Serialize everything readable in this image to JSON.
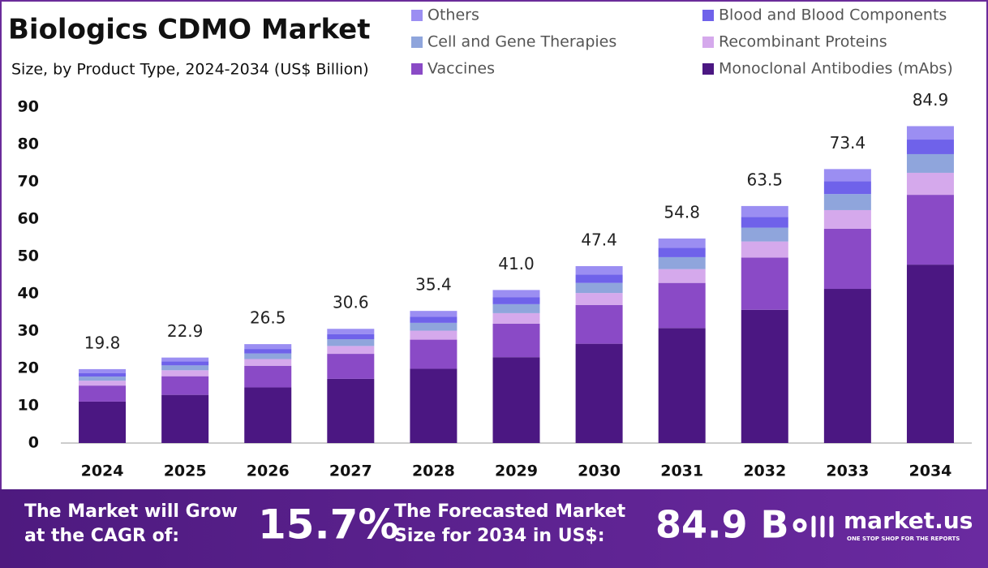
{
  "chart_data": {
    "type": "stacked_bar",
    "title": "Biologics CDMO Market",
    "subtitle": "Size, by Product Type, 2024-2034 (US$ Billion)",
    "categories": [
      "2024",
      "2025",
      "2026",
      "2027",
      "2028",
      "2029",
      "2030",
      "2031",
      "2032",
      "2033",
      "2034"
    ],
    "series": [
      {
        "name": "Monoclonal Antibodies (mAbs)",
        "color": "#4b1782",
        "values": [
          11.1,
          12.9,
          14.9,
          17.2,
          19.9,
          23.0,
          26.6,
          30.8,
          35.7,
          41.3,
          47.8
        ]
      },
      {
        "name": "Vaccines",
        "color": "#8a4ac6",
        "values": [
          4.3,
          5.0,
          5.8,
          6.7,
          7.8,
          9.0,
          10.4,
          12.1,
          14.0,
          16.1,
          18.7
        ]
      },
      {
        "name": "Recombinant Proteins",
        "color": "#d5a9ec",
        "values": [
          1.3,
          1.6,
          1.8,
          2.1,
          2.4,
          2.8,
          3.2,
          3.7,
          4.3,
          5.0,
          5.9
        ]
      },
      {
        "name": "Cell and Gene Therapies",
        "color": "#8fa5dc",
        "values": [
          1.1,
          1.3,
          1.5,
          1.8,
          2.1,
          2.4,
          2.7,
          3.2,
          3.7,
          4.3,
          5.0
        ]
      },
      {
        "name": "Blood and Blood Components",
        "color": "#6f62ea",
        "values": [
          0.9,
          1.1,
          1.2,
          1.4,
          1.6,
          1.9,
          2.2,
          2.5,
          2.9,
          3.4,
          3.9
        ]
      },
      {
        "name": "Others",
        "color": "#9b8ef2",
        "values": [
          1.1,
          1.0,
          1.3,
          1.4,
          1.6,
          1.9,
          2.3,
          2.5,
          2.9,
          3.3,
          3.6
        ]
      }
    ],
    "totals": [
      19.8,
      22.9,
      26.5,
      30.6,
      35.4,
      41.0,
      47.4,
      54.8,
      63.5,
      73.4,
      84.9
    ],
    "total_labels": [
      "19.8",
      "22.9",
      "26.5",
      "30.6",
      "35.4",
      "41.0",
      "47.4",
      "54.8",
      "63.5",
      "73.4",
      "84.9"
    ],
    "ylim": [
      0,
      90
    ],
    "yticks": [
      0,
      10,
      20,
      30,
      40,
      50,
      60,
      70,
      80,
      90
    ],
    "grid": false
  },
  "footer": {
    "cagr_text": "The Market will Grow at the CAGR of:",
    "cagr_value": "15.7%",
    "forecast_text": "The Forecasted Market Size for 2034 in US$:",
    "forecast_value": "84.9 B",
    "brand": "market.us",
    "tagline": "ONE STOP SHOP FOR THE REPORTS"
  }
}
